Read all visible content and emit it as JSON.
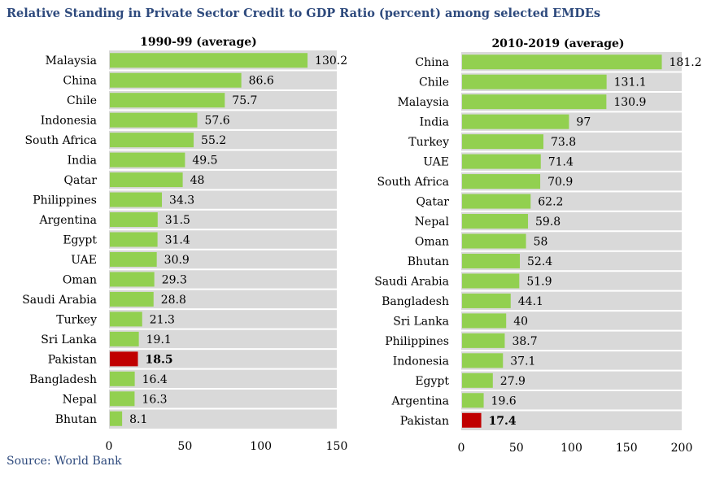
{
  "title": "Relative Standing in Private Sector Credit to GDP Ratio (percent) among selected EMDEs",
  "source": "Source: World Bank",
  "colors": {
    "bar": "#92d050",
    "highlight": "#c00000",
    "background": "#d9d9d9"
  },
  "chart_data": [
    {
      "type": "bar",
      "orientation": "horizontal",
      "title": "1990-99 (average)",
      "xlim": [
        0,
        150
      ],
      "xticks": [
        0,
        50,
        100,
        150
      ],
      "highlight": "Pakistan",
      "categories": [
        "Malaysia",
        "China",
        "Chile",
        "Indonesia",
        "South Africa",
        "India",
        "Qatar",
        "Philippines",
        "Argentina",
        "Egypt",
        "UAE",
        "Oman",
        "Saudi Arabia",
        "Turkey",
        "Sri Lanka",
        "Pakistan",
        "Bangladesh",
        "Nepal",
        "Bhutan"
      ],
      "values": [
        130.2,
        86.6,
        75.7,
        57.6,
        55.2,
        49.5,
        48,
        34.3,
        31.5,
        31.4,
        30.9,
        29.3,
        28.8,
        21.3,
        19.1,
        18.5,
        16.4,
        16.3,
        8.1
      ]
    },
    {
      "type": "bar",
      "orientation": "horizontal",
      "title": "2010-2019 (average)",
      "xlim": [
        0,
        200
      ],
      "xticks": [
        0,
        50,
        100,
        150,
        200
      ],
      "highlight": "Pakistan",
      "categories": [
        "China",
        "Chile",
        "Malaysia",
        "India",
        "Turkey",
        "UAE",
        "South Africa",
        "Qatar",
        "Nepal",
        "Oman",
        "Bhutan",
        "Saudi Arabia",
        "Bangladesh",
        "Sri Lanka",
        "Philippines",
        "Indonesia",
        "Egypt",
        "Argentina",
        "Pakistan"
      ],
      "values": [
        181.2,
        131.1,
        130.9,
        97,
        73.8,
        71.4,
        70.9,
        62.2,
        59.8,
        58,
        52.4,
        51.9,
        44.1,
        40,
        38.7,
        37.1,
        27.9,
        19.6,
        17.4
      ]
    }
  ]
}
